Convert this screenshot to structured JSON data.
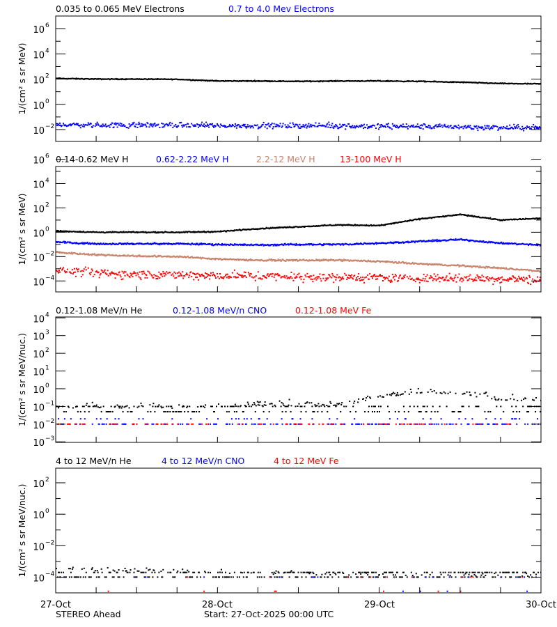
{
  "chart_data": [
    {
      "type": "scatter",
      "yscale": "log",
      "ylabel": "1/(cm² s sr MeV)",
      "ylim_log10": [
        -2.94,
        7.0
      ],
      "ytick_exponents": [
        -2,
        0,
        2,
        4,
        6
      ],
      "yminor_exponents": [
        -1,
        1,
        3,
        5
      ],
      "series": [
        {
          "name": "0.035 to 0.065 MeV Electrons",
          "color": "#000000",
          "style": "line",
          "scatter": 0.03,
          "density": 1.0,
          "trend_log10": [
            2.05,
            2.0,
            2.0,
            1.98,
            1.85,
            1.85,
            1.82,
            1.85,
            1.85,
            1.82,
            1.75,
            1.65,
            1.62
          ]
        },
        {
          "name": "0.7 to 4.0 Mev Electrons",
          "color": "#0000ff",
          "style": "dots",
          "scatter": 0.18,
          "density": 0.9,
          "trend_log10": [
            -1.6,
            -1.65,
            -1.65,
            -1.65,
            -1.7,
            -1.7,
            -1.7,
            -1.7,
            -1.75,
            -1.75,
            -1.8,
            -1.85,
            -1.85
          ]
        }
      ]
    },
    {
      "type": "scatter",
      "yscale": "log",
      "ylabel": "1/(cm² s sr MeV)",
      "ylim_log10": [
        -4.9,
        5.4
      ],
      "ytick_exponents": [
        -4,
        -2,
        0,
        2,
        4,
        6
      ],
      "yminor_exponents": [
        -3,
        -1,
        1,
        3,
        5
      ],
      "series": [
        {
          "name": "0.14-0.62 MeV H",
          "color": "#000000",
          "style": "line",
          "scatter": 0.04,
          "density": 1.0,
          "trend_log10": [
            0.1,
            0.0,
            0.0,
            0.0,
            0.05,
            0.3,
            0.45,
            0.6,
            0.55,
            1.1,
            1.45,
            1.0,
            1.15
          ]
        },
        {
          "name": "0.62-2.22 MeV H",
          "color": "#0000ff",
          "style": "line",
          "scatter": 0.06,
          "density": 1.0,
          "trend_log10": [
            -0.8,
            -0.95,
            -0.95,
            -0.95,
            -1.0,
            -1.05,
            -1.0,
            -1.0,
            -0.9,
            -0.75,
            -0.6,
            -0.9,
            -1.05
          ]
        },
        {
          "name": "2.2-12 MeV H",
          "color": "#c8826a",
          "style": "line",
          "scatter": 0.06,
          "density": 1.0,
          "trend_log10": [
            -1.65,
            -1.85,
            -1.95,
            -2.0,
            -2.2,
            -2.3,
            -2.3,
            -2.3,
            -2.4,
            -2.6,
            -2.75,
            -2.95,
            -3.2
          ]
        },
        {
          "name": "13-100 MeV H",
          "color": "#ff0000",
          "style": "dots",
          "scatter": 0.3,
          "density": 0.85,
          "trend_log10": [
            -3.1,
            -3.4,
            -3.45,
            -3.5,
            -3.55,
            -3.6,
            -3.65,
            -3.7,
            -3.75,
            -3.8,
            -3.8,
            -3.85,
            -3.9
          ]
        }
      ]
    },
    {
      "type": "scatter",
      "yscale": "log",
      "ylabel": "1/(cm² s sr MeV/nuc.)",
      "ylim_log10": [
        -3.03,
        4.05
      ],
      "ytick_exponents": [
        -3,
        -2,
        -1,
        0,
        1,
        2,
        3,
        4
      ],
      "yminor_exponents": [],
      "series": [
        {
          "name": "0.12-1.08 MeV/n He",
          "color": "#000000",
          "style": "quantized",
          "scatter": 0.25,
          "density": 0.55,
          "levels_log10": [
            -1.3,
            -1.0
          ],
          "trend_log10": [
            -1.1,
            -1.1,
            -1.1,
            -1.1,
            -1.05,
            -1.0,
            -1.0,
            -1.0,
            -0.5,
            -0.25,
            -0.3,
            -0.7,
            -0.7
          ]
        },
        {
          "name": "0.12-1.08 MeV/n CNO",
          "color": "#0000ff",
          "style": "quantized",
          "scatter": 0.0,
          "density": 0.3,
          "levels_log10": [
            -2.0,
            -1.7
          ],
          "trend_log10": [
            -2.0,
            -2.0,
            -2.0,
            -2.0,
            -2.0,
            -2.0,
            -2.0,
            -2.0,
            -1.85,
            -1.85,
            -1.85,
            -2.0,
            -2.0
          ]
        },
        {
          "name": "0.12-1.08 MeV Fe",
          "color": "#ff0000",
          "style": "quantized",
          "scatter": 0.0,
          "density": 0.12,
          "levels_log10": [
            -2.0
          ],
          "trend_log10": [
            -2.0,
            -2.0,
            -2.0,
            -2.0,
            -2.0,
            -2.0,
            -2.0,
            -2.0,
            -2.0,
            -2.0,
            -2.0,
            -2.0,
            -2.0
          ]
        }
      ]
    },
    {
      "type": "scatter",
      "yscale": "log",
      "ylabel": "1/(cm² s sr MeV/nuc.)",
      "ylim_log10": [
        -5.0,
        2.93
      ],
      "ytick_exponents": [
        -4,
        -2,
        0,
        2
      ],
      "yminor_exponents": [
        -3,
        -1,
        1
      ],
      "series": [
        {
          "name": "4 to 12 MeV/n He",
          "color": "#000000",
          "style": "quantized",
          "scatter": 0.2,
          "density": 0.55,
          "levels_log10": [
            -4.0,
            -3.7
          ],
          "trend_log10": [
            -3.5,
            -3.6,
            -3.65,
            -3.7,
            -3.75,
            -3.8,
            -3.85,
            -3.9,
            -3.9,
            -3.9,
            -3.95,
            -3.95,
            -3.95
          ]
        },
        {
          "name": "4 to 12 MeV/n CNO",
          "color": "#0000ff",
          "style": "quantized",
          "scatter": 0.0,
          "density": 0.03,
          "levels_log10": [
            -4.0,
            -4.9
          ],
          "trend_log10": [
            -4.0,
            -4.0,
            -4.0,
            -4.0,
            -4.0,
            -4.0,
            -4.0,
            -4.0,
            -4.0,
            -4.0,
            -4.0,
            -4.0,
            -4.0
          ]
        },
        {
          "name": "4 to 12 MeV Fe",
          "color": "#ff0000",
          "style": "quantized",
          "scatter": 0.0,
          "density": 0.02,
          "levels_log10": [
            -4.0,
            -4.9
          ],
          "trend_log10": [
            -4.0,
            -4.0,
            -4.0,
            -4.0,
            -4.0,
            -4.0,
            -4.0,
            -4.0,
            -4.0,
            -4.0,
            -4.0,
            -4.0,
            -4.0
          ]
        }
      ]
    }
  ],
  "x_axis": {
    "range_hours": [
      0,
      72
    ],
    "trend_step_hours": 6,
    "minor_tick_hours": 6,
    "tick_labels": [
      "27-Oct",
      "28-Oct",
      "29-Oct",
      "30-Oct"
    ]
  },
  "footer": {
    "spacecraft": "STEREO Ahead",
    "start": "Start: 27-Oct-2025 00:00 UTC"
  }
}
